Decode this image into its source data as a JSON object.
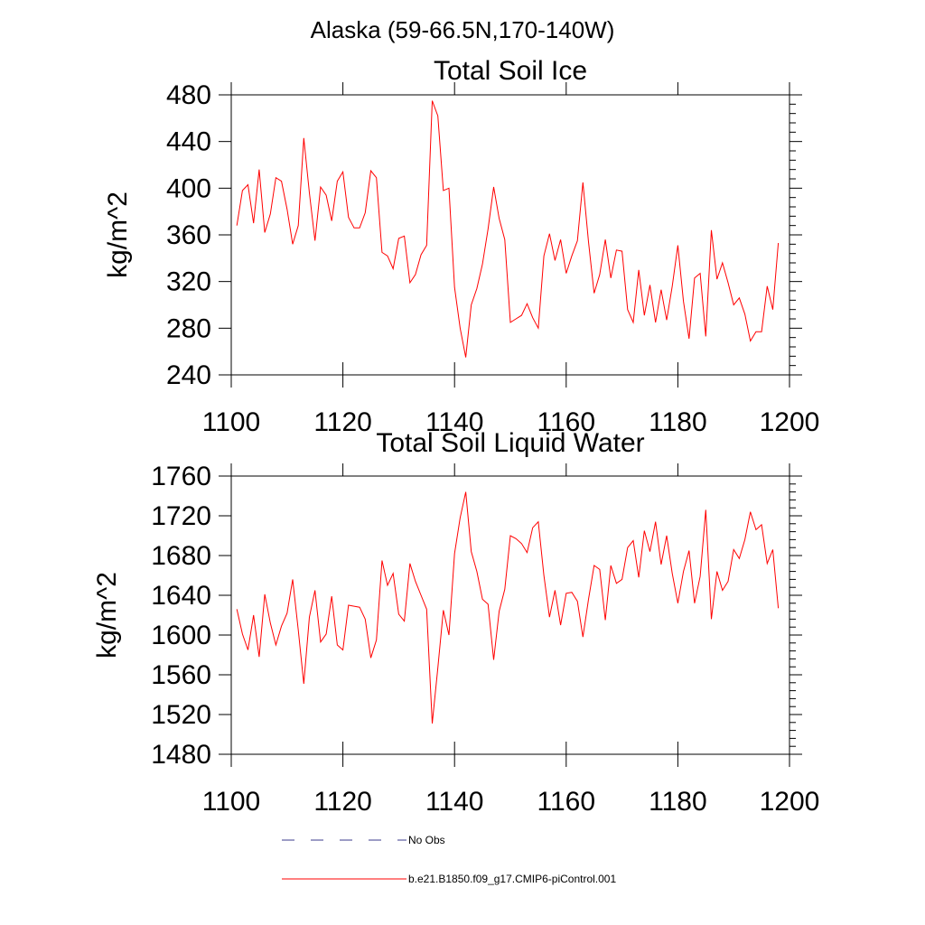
{
  "figure": {
    "title": "Alaska (59-66.5N,170-140W)"
  },
  "chart_data": [
    {
      "type": "line",
      "title": "Total Soil Ice",
      "xlabel": "",
      "ylabel": "kg/m^2",
      "xlim": [
        1100,
        1200
      ],
      "ylim": [
        240,
        480
      ],
      "xticks": [
        1100,
        1120,
        1140,
        1160,
        1180,
        1200
      ],
      "yticks": [
        240,
        280,
        320,
        360,
        400,
        440,
        480
      ],
      "grid": false,
      "color": "#ff0000",
      "x": [
        1101,
        1102,
        1103,
        1104,
        1105,
        1106,
        1107,
        1108,
        1109,
        1110,
        1111,
        1112,
        1113,
        1114,
        1115,
        1116,
        1117,
        1118,
        1119,
        1120,
        1121,
        1122,
        1123,
        1124,
        1125,
        1126,
        1127,
        1128,
        1129,
        1130,
        1131,
        1132,
        1133,
        1134,
        1135,
        1136,
        1137,
        1138,
        1139,
        1140,
        1141,
        1142,
        1143,
        1144,
        1145,
        1146,
        1147,
        1148,
        1149,
        1150,
        1151,
        1152,
        1153,
        1154,
        1155,
        1156,
        1157,
        1158,
        1159,
        1160,
        1161,
        1162,
        1163,
        1164,
        1165,
        1166,
        1167,
        1168,
        1169,
        1170,
        1171,
        1172,
        1173,
        1174,
        1175,
        1176,
        1177,
        1178,
        1179,
        1180,
        1181,
        1182,
        1183,
        1184,
        1185,
        1186,
        1187,
        1188,
        1189,
        1190,
        1191,
        1192,
        1193,
        1194,
        1195,
        1196,
        1197,
        1198
      ],
      "y": [
        368,
        398,
        403,
        370,
        416,
        362,
        378,
        409,
        406,
        382,
        352,
        368,
        443,
        396,
        355,
        401,
        394,
        372,
        406,
        414,
        375,
        366,
        366,
        379,
        415,
        409,
        345,
        342,
        331,
        357,
        359,
        319,
        326,
        343,
        351,
        475,
        462,
        398,
        400,
        315,
        280,
        255,
        300,
        314,
        335,
        365,
        401,
        374,
        356,
        285,
        288,
        291,
        301,
        289,
        280,
        342,
        361,
        338,
        356,
        327,
        342,
        355,
        405,
        354,
        310,
        326,
        356,
        323,
        347,
        346,
        296,
        285,
        330,
        291,
        317,
        285,
        313,
        287,
        316,
        351,
        303,
        271,
        323,
        327,
        273,
        364,
        322,
        336,
        319,
        300,
        306,
        292,
        269,
        277,
        277,
        316,
        296,
        353
      ]
    },
    {
      "type": "line",
      "title": "Total Soil Liquid Water",
      "xlabel": "",
      "ylabel": "kg/m^2",
      "xlim": [
        1100,
        1200
      ],
      "ylim": [
        1480,
        1760
      ],
      "xticks": [
        1100,
        1120,
        1140,
        1160,
        1180,
        1200
      ],
      "yticks": [
        1480,
        1520,
        1560,
        1600,
        1640,
        1680,
        1720,
        1760
      ],
      "grid": false,
      "color": "#ff0000",
      "x": [
        1101,
        1102,
        1103,
        1104,
        1105,
        1106,
        1107,
        1108,
        1109,
        1110,
        1111,
        1112,
        1113,
        1114,
        1115,
        1116,
        1117,
        1118,
        1119,
        1120,
        1121,
        1122,
        1123,
        1124,
        1125,
        1126,
        1127,
        1128,
        1129,
        1130,
        1131,
        1132,
        1133,
        1134,
        1135,
        1136,
        1137,
        1138,
        1139,
        1140,
        1141,
        1142,
        1143,
        1144,
        1145,
        1146,
        1147,
        1148,
        1149,
        1150,
        1151,
        1152,
        1153,
        1154,
        1155,
        1156,
        1157,
        1158,
        1159,
        1160,
        1161,
        1162,
        1163,
        1164,
        1165,
        1166,
        1167,
        1168,
        1169,
        1170,
        1171,
        1172,
        1173,
        1174,
        1175,
        1176,
        1177,
        1178,
        1179,
        1180,
        1181,
        1182,
        1183,
        1184,
        1185,
        1186,
        1187,
        1188,
        1189,
        1190,
        1191,
        1192,
        1193,
        1194,
        1195,
        1196,
        1197,
        1198
      ],
      "y": [
        1626,
        1601,
        1585,
        1620,
        1578,
        1641,
        1612,
        1590,
        1609,
        1622,
        1656,
        1605,
        1551,
        1618,
        1645,
        1593,
        1601,
        1639,
        1590,
        1585,
        1630,
        1629,
        1628,
        1616,
        1577,
        1595,
        1675,
        1650,
        1662,
        1621,
        1614,
        1672,
        1654,
        1640,
        1626,
        1511,
        1567,
        1625,
        1600,
        1682,
        1718,
        1744,
        1684,
        1664,
        1636,
        1631,
        1575,
        1624,
        1646,
        1700,
        1697,
        1692,
        1683,
        1708,
        1714,
        1660,
        1618,
        1645,
        1610,
        1642,
        1643,
        1634,
        1598,
        1636,
        1670,
        1666,
        1615,
        1670,
        1652,
        1656,
        1688,
        1695,
        1658,
        1705,
        1684,
        1714,
        1671,
        1700,
        1662,
        1632,
        1664,
        1685,
        1632,
        1659,
        1726,
        1616,
        1664,
        1645,
        1654,
        1686,
        1677,
        1696,
        1724,
        1706,
        1711,
        1672,
        1686,
        1627
      ]
    }
  ],
  "legend": {
    "items": [
      {
        "label": "No Obs",
        "color": "#3b3b8c",
        "dash": "dashed"
      },
      {
        "label": "b.e21.B1850.f09_g17.CMIP6-piControl.001",
        "color": "#ff0000",
        "dash": "solid"
      }
    ]
  }
}
